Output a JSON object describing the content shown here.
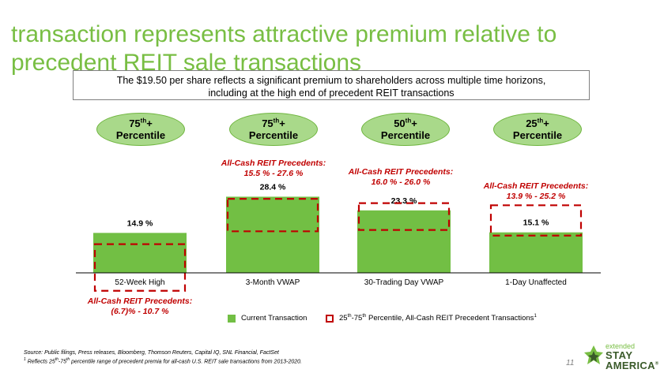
{
  "header": {
    "title": "transaction represents attractive premium relative to precedent REIT sale transactions"
  },
  "callout": {
    "line1": "The $19.50 per share reflects a significant premium to shareholders across multiple time horizons,",
    "line2": "including at the high end of precedent REIT transactions"
  },
  "percentile_pills": [
    {
      "rank": "75",
      "suffix": "th",
      "plus": "+",
      "label": "Percentile"
    },
    {
      "rank": "75",
      "suffix": "th",
      "plus": "+",
      "label": "Percentile"
    },
    {
      "rank": "50",
      "suffix": "th",
      "plus": "+",
      "label": "Percentile"
    },
    {
      "rank": "25",
      "suffix": "th",
      "plus": "+",
      "label": "Percentile"
    }
  ],
  "chart_data": {
    "type": "bar",
    "categories": [
      "52-Week High",
      "3-Month VWAP",
      "30-Trading Day VWAP",
      "1-Day Unaffected"
    ],
    "series": [
      {
        "name": "Current Transaction",
        "values": [
          14.9,
          28.4,
          23.3,
          15.1
        ],
        "labels": [
          "14.9 %",
          "28.4 %",
          "23.3 %",
          "15.1 %"
        ]
      }
    ],
    "precedent_ranges": [
      {
        "low": -6.7,
        "high": 10.7,
        "title": "All-Cash REIT Precedents:",
        "range_text": "(6.7)% - 10.7 %"
      },
      {
        "low": 15.5,
        "high": 27.6,
        "title": "All-Cash REIT Precedents:",
        "range_text": "15.5 % - 27.6 %"
      },
      {
        "low": 16.0,
        "high": 26.0,
        "title": "All-Cash REIT Precedents:",
        "range_text": "16.0 % - 26.0 %"
      },
      {
        "low": 13.9,
        "high": 25.2,
        "title": "All-Cash REIT Precedents:",
        "range_text": "13.9 % - 25.2 %"
      }
    ],
    "ylim": [
      -6.7,
      28.4
    ],
    "grid": false,
    "colors": {
      "bar": "#72bf44",
      "range": "#c00000",
      "label": "#c00000"
    }
  },
  "legend": {
    "current_label": "Current Transaction",
    "range_label_pre": "25",
    "range_label_sup1": "th",
    "range_label_mid": "-75",
    "range_label_sup2": "th",
    "range_label_post": " Percentile, All-Cash REIT Precedent Transactions",
    "range_label_note": "1"
  },
  "footer": {
    "source": "Source: Public filings, Press releases, Bloomberg, Thomson Reuters, Capital IQ, SNL Financial, FactSet",
    "note_marker": "1",
    "note_pre": " Reflects 25",
    "note_sup1": "th",
    "note_mid": "-75",
    "note_sup2": "th",
    "note_post": " percentile range of precedent premia for all-cash U.S. REIT sale transactions from 2013-2020.",
    "page_number": "11"
  },
  "logo": {
    "small": "extended",
    "line1": "STAY",
    "line2": "AMERICA",
    "mark": "®"
  },
  "theme": {
    "accent": "#78be43",
    "pill_fill": "#a9d98a"
  }
}
